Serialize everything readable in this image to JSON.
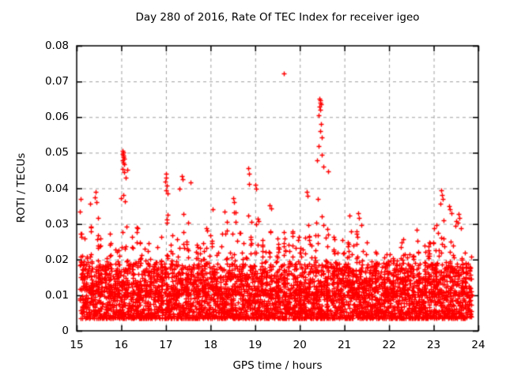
{
  "chart_data": {
    "type": "scatter",
    "title": "Day 280 of 2016, Rate Of TEC Index for receiver igeo",
    "xlabel": "GPS time / hours",
    "ylabel": "ROTI / TECUs",
    "xlim": [
      15,
      24
    ],
    "ylim": [
      0,
      0.08
    ],
    "xticks": {
      "values": [
        15,
        16,
        17,
        18,
        19,
        20,
        21,
        22,
        23,
        24
      ],
      "labels": [
        "15",
        "16",
        "17",
        "18",
        "19",
        "20",
        "21",
        "22",
        "23",
        "24"
      ]
    },
    "yticks": {
      "values": [
        0,
        0.01,
        0.02,
        0.03,
        0.04,
        0.05,
        0.06,
        0.07,
        0.08
      ],
      "labels": [
        "0",
        "0.01",
        "0.02",
        "0.03",
        "0.04",
        "0.05",
        "0.06",
        "0.07",
        "0.08"
      ]
    },
    "grid": {
      "visible": true,
      "color": "#a0a0a0",
      "dash": [
        4,
        4
      ]
    },
    "axis_color": "#000000",
    "marker": {
      "shape": "plus",
      "color": "#ff0000",
      "size": 7
    },
    "legend": "none",
    "series": [
      {
        "name": "ROTI",
        "x_start": 15.07,
        "x_end": 23.85,
        "base_band": {
          "min": 0.0035,
          "typical_max": 0.019
        },
        "envelope": {
          "start": 15.0,
          "step": 0.1,
          "max_values": [
            0.034,
            0.027,
            0.024,
            0.03,
            0.034,
            0.026,
            0.022,
            0.028,
            0.025,
            0.023,
            0.04,
            0.034,
            0.028,
            0.029,
            0.025,
            0.023,
            0.026,
            0.022,
            0.024,
            0.028,
            0.037,
            0.03,
            0.027,
            0.033,
            0.028,
            0.033,
            0.027,
            0.024,
            0.026,
            0.029,
            0.031,
            0.026,
            0.029,
            0.032,
            0.03,
            0.034,
            0.028,
            0.026,
            0.033,
            0.03,
            0.036,
            0.029,
            0.027,
            0.033,
            0.028,
            0.025,
            0.029,
            0.026,
            0.03,
            0.028,
            0.026,
            0.031,
            0.034,
            0.031,
            0.038,
            0.036,
            0.032,
            0.028,
            0.025,
            0.027,
            0.029,
            0.032,
            0.028,
            0.031,
            0.027,
            0.024,
            0.022,
            0.025,
            0.023,
            0.026,
            0.024,
            0.022,
            0.025,
            0.026,
            0.022,
            0.024,
            0.028,
            0.025,
            0.027,
            0.029,
            0.031,
            0.035,
            0.036,
            0.033,
            0.031,
            0.032,
            0.029,
            0.026,
            0.024
          ]
        },
        "points_per_bin": 55,
        "seed": 7,
        "peaks": [
          [
            19.65,
            0.0723
          ],
          [
            16.02,
            0.0506
          ],
          [
            16.04,
            0.0501
          ],
          [
            16.03,
            0.0497
          ],
          [
            16.05,
            0.0492
          ],
          [
            16.04,
            0.0488
          ],
          [
            16.06,
            0.0483
          ],
          [
            16.02,
            0.0478
          ],
          [
            16.05,
            0.0473
          ],
          [
            16.07,
            0.0468
          ],
          [
            16.03,
            0.0455
          ],
          [
            16.06,
            0.0446
          ],
          [
            16.1,
            0.043
          ],
          [
            16.13,
            0.0452
          ],
          [
            16.05,
            0.0381
          ],
          [
            20.44,
            0.0652
          ],
          [
            20.46,
            0.0647
          ],
          [
            20.45,
            0.0641
          ],
          [
            20.47,
            0.0636
          ],
          [
            20.44,
            0.0629
          ],
          [
            20.46,
            0.0621
          ],
          [
            20.43,
            0.0606
          ],
          [
            20.48,
            0.0581
          ],
          [
            20.45,
            0.056
          ],
          [
            20.49,
            0.0543
          ],
          [
            20.42,
            0.0519
          ],
          [
            20.5,
            0.0495
          ],
          [
            20.38,
            0.0478
          ],
          [
            20.52,
            0.0462
          ],
          [
            20.64,
            0.0448
          ],
          [
            17.0,
            0.0441
          ],
          [
            17.01,
            0.043
          ],
          [
            16.99,
            0.0419
          ],
          [
            17.02,
            0.0408
          ],
          [
            17.0,
            0.0395
          ],
          [
            17.03,
            0.0386
          ],
          [
            17.35,
            0.0434
          ],
          [
            17.37,
            0.0425
          ],
          [
            17.55,
            0.0417
          ],
          [
            17.3,
            0.0398
          ],
          [
            18.85,
            0.0457
          ],
          [
            18.87,
            0.0441
          ],
          [
            18.86,
            0.0413
          ],
          [
            19.0,
            0.0409
          ],
          [
            19.02,
            0.0398
          ],
          [
            20.15,
            0.0391
          ],
          [
            20.18,
            0.0379
          ],
          [
            15.42,
            0.0389
          ],
          [
            15.4,
            0.0374
          ],
          [
            15.44,
            0.0362
          ],
          [
            15.09,
            0.037
          ],
          [
            15.3,
            0.0356
          ],
          [
            18.5,
            0.0373
          ],
          [
            18.52,
            0.0362
          ],
          [
            18.31,
            0.0334
          ],
          [
            18.05,
            0.0341
          ],
          [
            19.32,
            0.0353
          ],
          [
            19.36,
            0.0344
          ],
          [
            23.17,
            0.0394
          ],
          [
            23.19,
            0.0381
          ],
          [
            23.21,
            0.0369
          ],
          [
            23.15,
            0.0357
          ],
          [
            23.35,
            0.0351
          ],
          [
            23.37,
            0.0341
          ],
          [
            23.39,
            0.0331
          ],
          [
            23.55,
            0.0329
          ],
          [
            23.57,
            0.0318
          ],
          [
            21.12,
            0.0323
          ],
          [
            21.3,
            0.0331
          ],
          [
            21.33,
            0.0317
          ],
          [
            22.32,
            0.0256
          ],
          [
            22.62,
            0.0283
          ]
        ]
      }
    ]
  }
}
